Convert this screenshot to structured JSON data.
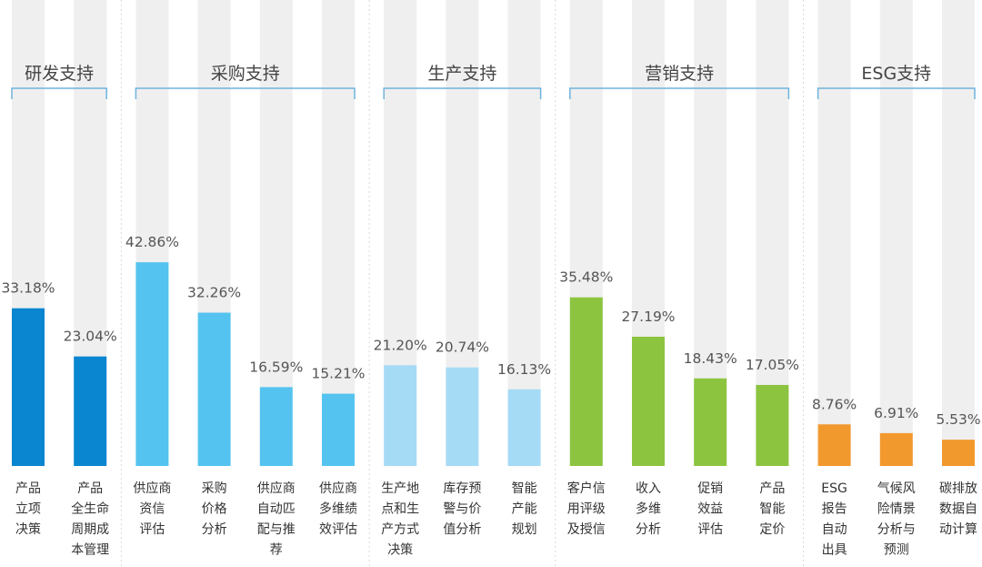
{
  "chart_data": {
    "type": "bar",
    "ylim": [
      0,
      100
    ],
    "groups": [
      {
        "title": "研发支持",
        "color": "#0A85D0",
        "bars": [
          {
            "category": [
              "产品",
              "立项",
              "决策"
            ],
            "value": 33.18,
            "label": "33.18%"
          },
          {
            "category": [
              "产品",
              "全生命",
              "周期成",
              "本管理"
            ],
            "value": 23.04,
            "label": "23.04%"
          }
        ]
      },
      {
        "title": "采购支持",
        "color": "#55C3EF",
        "bars": [
          {
            "category": [
              "供应商",
              "资信",
              "评估"
            ],
            "value": 42.86,
            "label": "42.86%"
          },
          {
            "category": [
              "采购",
              "价格",
              "分析"
            ],
            "value": 32.26,
            "label": "32.26%"
          },
          {
            "category": [
              "供应商",
              "自动匹",
              "配与推",
              "荐"
            ],
            "value": 16.59,
            "label": "16.59%"
          },
          {
            "category": [
              "供应商",
              "多维绩",
              "效评估"
            ],
            "value": 15.21,
            "label": "15.21%"
          }
        ]
      },
      {
        "title": "生产支持",
        "color": "#A6DBF6",
        "bars": [
          {
            "category": [
              "生产地",
              "点和生",
              "产方式",
              "决策"
            ],
            "value": 21.2,
            "label": "21.20%"
          },
          {
            "category": [
              "库存预",
              "警与价",
              "值分析"
            ],
            "value": 20.74,
            "label": "20.74%"
          },
          {
            "category": [
              "智能",
              "产能",
              "规划"
            ],
            "value": 16.13,
            "label": "16.13%"
          }
        ]
      },
      {
        "title": "营销支持",
        "color": "#8CC440",
        "bars": [
          {
            "category": [
              "客户信",
              "用评级",
              "及授信"
            ],
            "value": 35.48,
            "label": "35.48%"
          },
          {
            "category": [
              "收入",
              "多维",
              "分析"
            ],
            "value": 27.19,
            "label": "27.19%"
          },
          {
            "category": [
              "促销",
              "效益",
              "评估"
            ],
            "value": 18.43,
            "label": "18.43%"
          },
          {
            "category": [
              "产品",
              "智能",
              "定价"
            ],
            "value": 17.05,
            "label": "17.05%"
          }
        ]
      },
      {
        "title": "ESG支持",
        "color": "#F2992E",
        "bars": [
          {
            "category": [
              "ESG",
              "报告",
              "自动",
              "出具"
            ],
            "value": 8.76,
            "label": "8.76%"
          },
          {
            "category": [
              "气候风",
              "险情景",
              "分析与",
              "预测"
            ],
            "value": 6.91,
            "label": "6.91%"
          },
          {
            "category": [
              "碳排放",
              "数据自",
              "动计算"
            ],
            "value": 5.53,
            "label": "5.53%"
          }
        ]
      }
    ],
    "background_bar_color": "#EFEFEF",
    "bracket_color": "#6FB3DE",
    "separator_color": "#D9D9D9"
  }
}
